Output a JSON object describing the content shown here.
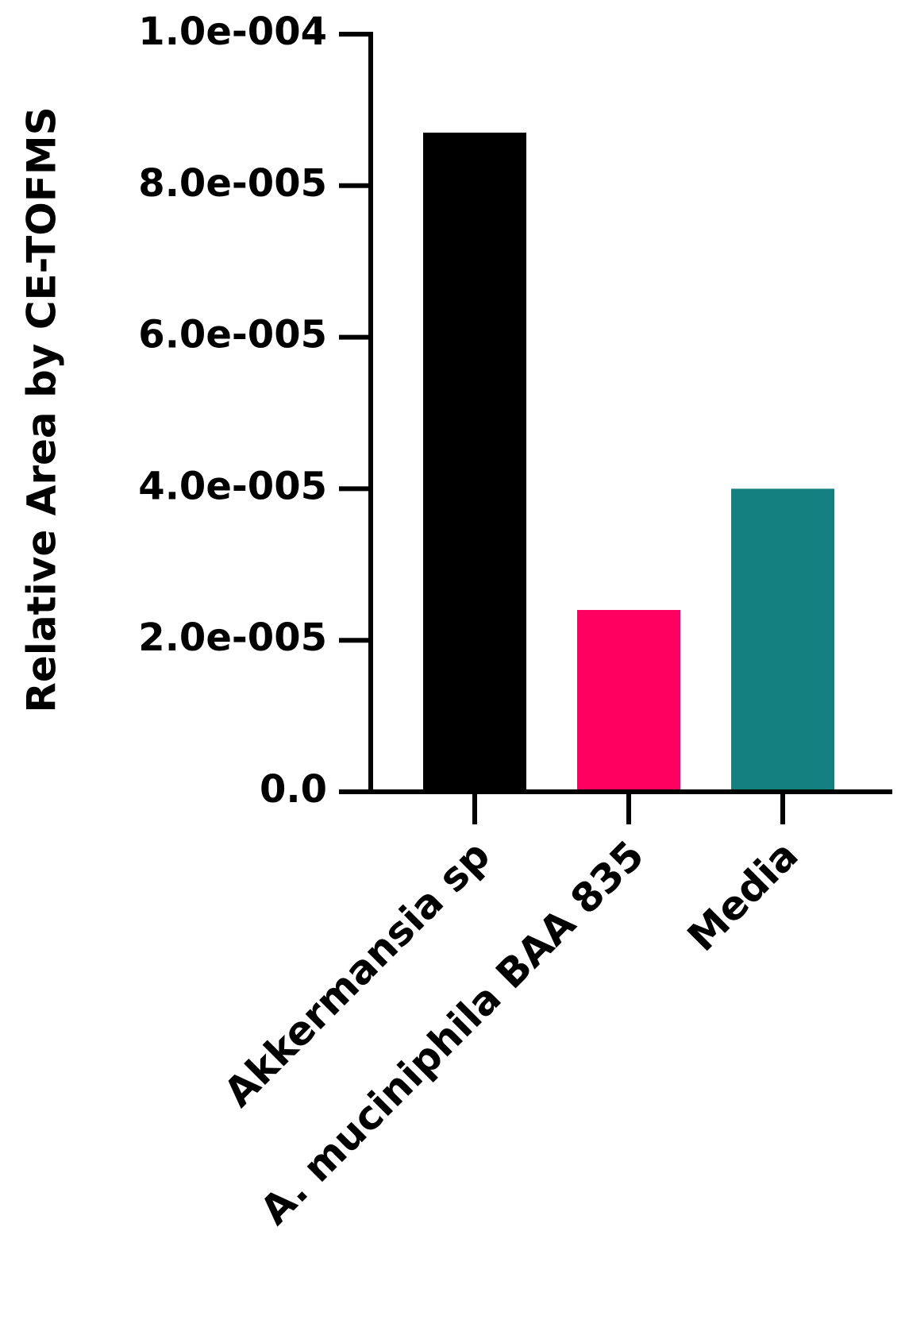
{
  "chart_data": {
    "type": "bar",
    "y_label": "Relative Area by CE-TOFMS",
    "categories": [
      "Akkermansia sp",
      "A. muciniphila BAA 835",
      "Media"
    ],
    "values": [
      8.7e-05,
      2.4e-05,
      4e-05
    ],
    "colors": [
      "#000000",
      "#ff0060",
      "#137f7f"
    ],
    "ylim": [
      0,
      0.0001
    ],
    "yticks": [
      {
        "value": 0,
        "label": "0.0"
      },
      {
        "value": 2e-05,
        "label": "2.0e-005"
      },
      {
        "value": 4e-05,
        "label": "4.0e-005"
      },
      {
        "value": 6e-05,
        "label": "6.0e-005"
      },
      {
        "value": 8e-05,
        "label": "8.0e-005"
      },
      {
        "value": 0.0001,
        "label": "1.0e-004"
      }
    ],
    "grid": false
  }
}
